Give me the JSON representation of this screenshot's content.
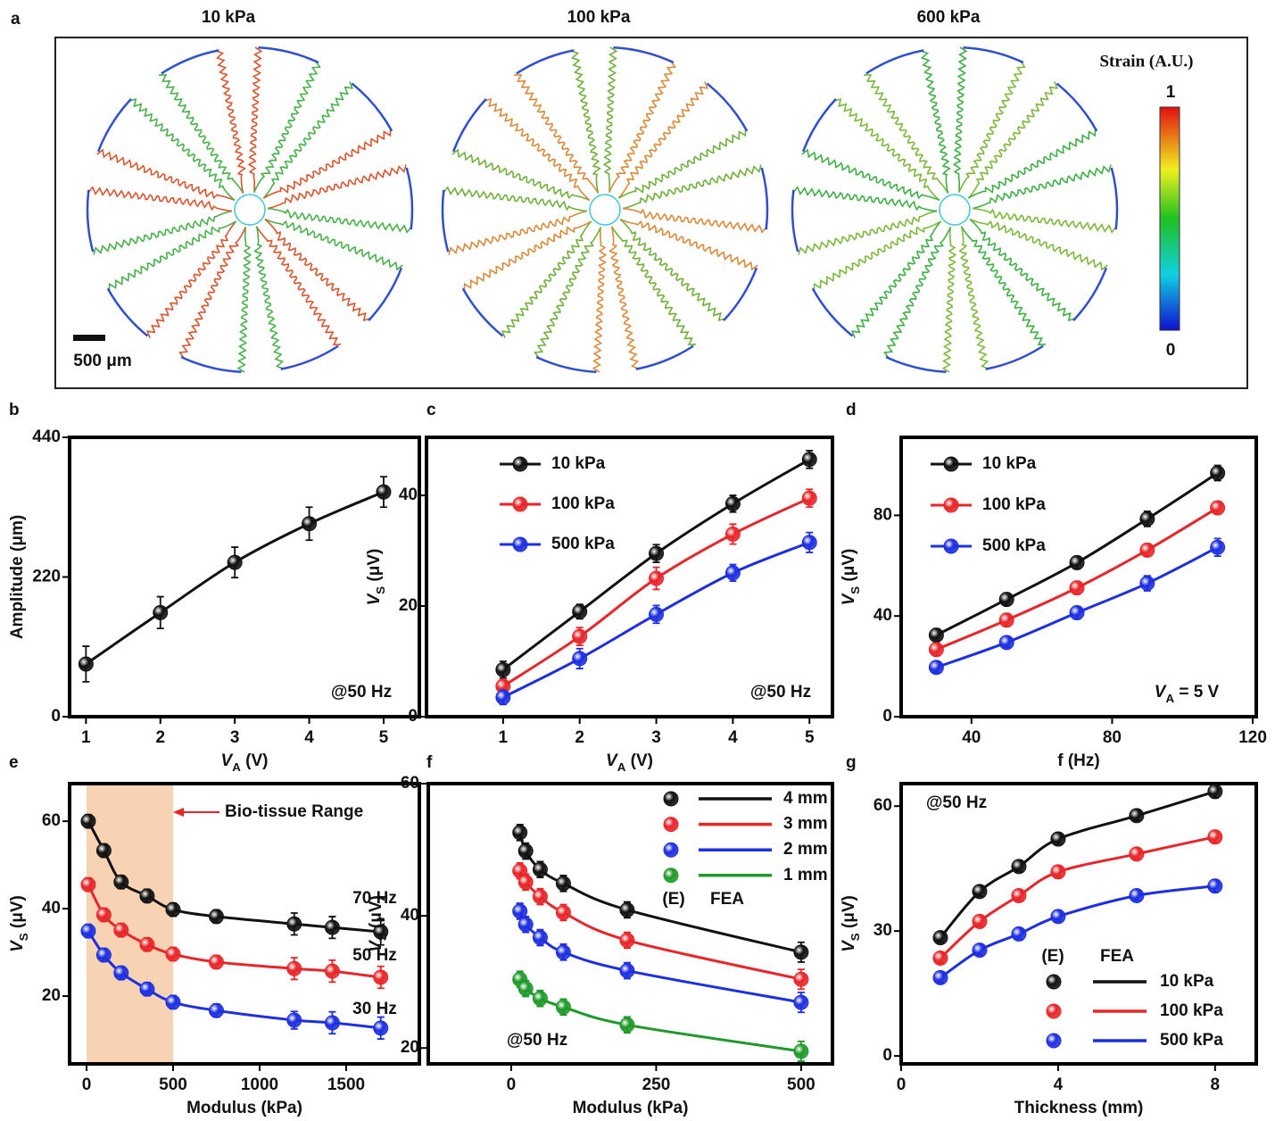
{
  "panel_a": {
    "label": "a",
    "titles": [
      "10 kPa",
      "100 kPa",
      "600 kPa"
    ],
    "colorbar": {
      "title": "Strain (A.U.)",
      "ticks": [
        0,
        1
      ]
    },
    "scale_bar": "500 μm"
  },
  "chart_data": [
    {
      "label": "b",
      "type": "line",
      "x": [
        1,
        2,
        3,
        4,
        5
      ],
      "values": [
        83,
        164,
        243,
        304,
        354
      ],
      "errors": [
        28,
        25,
        24,
        26,
        24
      ],
      "color": "#111111",
      "xlim": [
        0.78,
        5.48
      ],
      "xticks": [
        1,
        2,
        3,
        4,
        5
      ],
      "ylim": [
        0,
        440
      ],
      "yticks": [
        0,
        220,
        440
      ],
      "xlabel": [
        "V",
        "A",
        " (V)"
      ],
      "ylabel": "Amplitude (μm)",
      "annotation": "@50 Hz"
    },
    {
      "label": "c",
      "type": "line",
      "x": [
        1,
        2,
        3,
        4,
        5
      ],
      "series": [
        {
          "name": "10 kPa",
          "color": "#111111",
          "values": [
            8.5,
            19,
            29.5,
            38.5,
            46.5
          ],
          "errors": [
            1.5,
            1.3,
            1.6,
            1.5,
            1.6
          ]
        },
        {
          "name": "100 kPa",
          "color": "#e8262a",
          "values": [
            5.5,
            14.5,
            25,
            33,
            39.5
          ],
          "errors": [
            1.3,
            1.6,
            2,
            1.8,
            1.6
          ]
        },
        {
          "name": "500 kPa",
          "color": "#1d2fe0",
          "values": [
            3.5,
            10.5,
            18.5,
            26,
            31.5
          ],
          "errors": [
            1.3,
            1.8,
            1.6,
            1.5,
            1.8
          ]
        }
      ],
      "xlim": [
        0,
        5.3
      ],
      "xticks": [
        1,
        2,
        3,
        4,
        5
      ],
      "ylim": [
        0,
        50.5
      ],
      "yticks": [
        0,
        20,
        40
      ],
      "xlabel": [
        "V",
        "A",
        " (V)"
      ],
      "ylabel": [
        "V",
        "S",
        " (μV)"
      ],
      "annotation": "@50 Hz"
    },
    {
      "label": "d",
      "type": "line",
      "x": [
        30,
        50,
        70,
        90,
        110
      ],
      "series": [
        {
          "name": "10 kPa",
          "color": "#111111",
          "values": [
            32.4,
            46.6,
            61.2,
            78.6,
            96.8
          ],
          "errors": [
            2.5,
            2.5,
            2.5,
            3,
            3
          ]
        },
        {
          "name": "100 kPa",
          "color": "#e8262a",
          "values": [
            26.7,
            38.4,
            51.2,
            66.2,
            83
          ],
          "errors": [
            2.5,
            2.5,
            2.5,
            2.5,
            2.5
          ]
        },
        {
          "name": "500 kPa",
          "color": "#1d2fe0",
          "values": [
            19.6,
            29.5,
            41.3,
            53,
            67.3
          ],
          "errors": [
            2,
            2,
            2.5,
            3,
            3.5
          ]
        }
      ],
      "xlim": [
        20,
        121
      ],
      "xticks": [
        40,
        80,
        120
      ],
      "ylim": [
        0,
        111
      ],
      "yticks": [
        0,
        40,
        80
      ],
      "xlabel": "f (Hz)",
      "ylabel": [
        "V",
        "S",
        " (μV)"
      ],
      "annotation": [
        "V",
        "A",
        " = 5 V"
      ]
    },
    {
      "label": "e",
      "type": "line",
      "x": [
        10,
        100,
        200,
        350,
        500,
        750,
        1200,
        1420,
        1700
      ],
      "series": [
        {
          "name": "70 Hz",
          "color": "#111111",
          "values": [
            60,
            53.3,
            46.1,
            42.9,
            39.8,
            38.2,
            36.5,
            35.7,
            34.7
          ],
          "errors": [
            1.5,
            1.5,
            1.5,
            1.5,
            1.5,
            1.5,
            2.5,
            2.5,
            3
          ]
        },
        {
          "name": "50 Hz",
          "color": "#e8262a",
          "values": [
            45.5,
            38.6,
            35.1,
            31.8,
            29.6,
            27.8,
            26.3,
            25.7,
            24.3
          ],
          "errors": [
            1.5,
            1.5,
            1.5,
            1.5,
            1.5,
            1.5,
            2.5,
            2.5,
            2.5
          ]
        },
        {
          "name": "30 Hz",
          "color": "#1d2fe0",
          "values": [
            34.9,
            29.4,
            25.3,
            21.6,
            18.6,
            16.7,
            14.5,
            13.9,
            12.7
          ],
          "errors": [
            1.5,
            1.5,
            1.5,
            1.5,
            1.5,
            1.5,
            2,
            2.5,
            2.5
          ]
        }
      ],
      "xlim": [
        -98,
        1923
      ],
      "xticks": [
        0,
        500,
        1000,
        1500
      ],
      "ylim": [
        4.5,
        68.6
      ],
      "yticks": [
        20,
        40,
        60
      ],
      "shaded_range": [
        0,
        500
      ],
      "shaded_label": "Bio-tissue Range",
      "xlabel": "Modulus (kPa)",
      "ylabel": [
        "V",
        "S",
        " (μV)"
      ]
    },
    {
      "label": "f",
      "type": "line",
      "x": [
        15,
        25,
        50,
        90,
        200,
        500
      ],
      "series": [
        {
          "name": "4 mm",
          "color": "#111111",
          "values": [
            52.6,
            49.8,
            47,
            44.9,
            40.9,
            34.5
          ],
          "errors": [
            1.2,
            1.2,
            1.2,
            1.2,
            1.2,
            1.5
          ]
        },
        {
          "name": "3 mm",
          "color": "#e8262a",
          "values": [
            46.8,
            45.1,
            42.9,
            40.5,
            36.3,
            30.4
          ],
          "errors": [
            1.2,
            1.2,
            1.2,
            1.2,
            1.2,
            1.5
          ]
        },
        {
          "name": "2 mm",
          "color": "#1d2fe0",
          "values": [
            40.7,
            38.7,
            36.7,
            34.5,
            31.7,
            26.9
          ],
          "errors": [
            1.2,
            1.2,
            1.2,
            1.2,
            1.2,
            1.5
          ]
        },
        {
          "name": "1 mm",
          "color": "#1f9a2a",
          "values": [
            30.4,
            29,
            27.5,
            26.2,
            23.5,
            19.5
          ],
          "errors": [
            1.2,
            1.2,
            1.2,
            1.2,
            1.2,
            1.5
          ]
        }
      ],
      "xlim": [
        -143,
        554
      ],
      "xticks": [
        0,
        250,
        500
      ],
      "ylim": [
        17.6,
        60
      ],
      "yticks": [
        20,
        40,
        60
      ],
      "legend_header": [
        "(E)",
        "FEA"
      ],
      "xlabel": "Modulus (kPa)",
      "ylabel": [
        "V",
        "S",
        " (μV)"
      ],
      "annotation": "@50 Hz"
    },
    {
      "label": "g",
      "type": "line",
      "x": [
        1,
        2,
        3,
        4,
        6,
        8
      ],
      "series": [
        {
          "name": "10 kPa",
          "color": "#111111",
          "values": [
            28.4,
            39.5,
            45.5,
            52.1,
            57.7,
            63.5
          ],
          "errors": [
            1.2,
            1.2,
            1.2,
            1.2,
            1.2,
            1.5
          ]
        },
        {
          "name": "100 kPa",
          "color": "#e8262a",
          "values": [
            23.5,
            32.3,
            38.5,
            44.2,
            48.5,
            52.6
          ],
          "errors": [
            1.2,
            1.2,
            1.2,
            1.2,
            1.2,
            1.5
          ]
        },
        {
          "name": "500 kPa",
          "color": "#1d2fe0",
          "values": [
            18.8,
            25.4,
            29.3,
            33.5,
            38.5,
            40.8
          ],
          "errors": [
            1.2,
            1.2,
            1.2,
            1.2,
            1.2,
            1.5
          ]
        }
      ],
      "xlim": [
        0,
        9.05
      ],
      "xticks": [
        0,
        4,
        8
      ],
      "ylim": [
        -1.9,
        65.4
      ],
      "yticks": [
        0,
        30,
        60
      ],
      "legend_header": [
        "(E)",
        "FEA"
      ],
      "xlabel": "Thickness (mm)",
      "ylabel": [
        "V",
        "S",
        " (μV)"
      ],
      "annotation": "@50 Hz"
    }
  ]
}
